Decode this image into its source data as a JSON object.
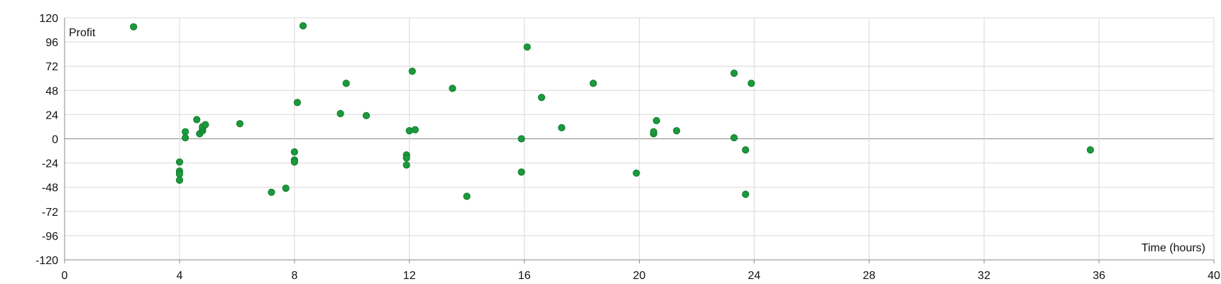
{
  "chart_data": {
    "type": "scatter",
    "xlabel": "Time (hours)",
    "ylabel": "Profit",
    "xlim": [
      0,
      40
    ],
    "ylim": [
      -120,
      120
    ],
    "x_ticks": [
      0,
      4,
      8,
      12,
      16,
      20,
      24,
      28,
      32,
      36,
      40
    ],
    "y_ticks": [
      120,
      96,
      72,
      48,
      24,
      0,
      -24,
      -48,
      -72,
      -96,
      -120
    ],
    "grid": true,
    "zero_line": true,
    "marker_color": "#1a9a3c",
    "points": [
      {
        "x": 2.4,
        "y": 111
      },
      {
        "x": 4.0,
        "y": -23
      },
      {
        "x": 4.0,
        "y": -32
      },
      {
        "x": 4.0,
        "y": -35
      },
      {
        "x": 4.0,
        "y": -41
      },
      {
        "x": 4.2,
        "y": 7
      },
      {
        "x": 4.2,
        "y": 1
      },
      {
        "x": 4.6,
        "y": 19
      },
      {
        "x": 4.7,
        "y": 5
      },
      {
        "x": 4.8,
        "y": 8
      },
      {
        "x": 4.8,
        "y": 10
      },
      {
        "x": 4.8,
        "y": 12
      },
      {
        "x": 4.9,
        "y": 14
      },
      {
        "x": 6.1,
        "y": 15
      },
      {
        "x": 7.2,
        "y": -53
      },
      {
        "x": 7.7,
        "y": -49
      },
      {
        "x": 8.0,
        "y": -13
      },
      {
        "x": 8.0,
        "y": -21
      },
      {
        "x": 8.0,
        "y": -23
      },
      {
        "x": 8.1,
        "y": 36
      },
      {
        "x": 8.3,
        "y": 112
      },
      {
        "x": 9.6,
        "y": 25
      },
      {
        "x": 9.8,
        "y": 55
      },
      {
        "x": 10.5,
        "y": 23
      },
      {
        "x": 11.9,
        "y": -16
      },
      {
        "x": 11.9,
        "y": -19
      },
      {
        "x": 11.9,
        "y": -26
      },
      {
        "x": 12.0,
        "y": 8
      },
      {
        "x": 12.1,
        "y": 67
      },
      {
        "x": 12.2,
        "y": 9
      },
      {
        "x": 13.5,
        "y": 50
      },
      {
        "x": 14.0,
        "y": -57
      },
      {
        "x": 15.9,
        "y": 0
      },
      {
        "x": 15.9,
        "y": -33
      },
      {
        "x": 16.1,
        "y": 91
      },
      {
        "x": 16.6,
        "y": 41
      },
      {
        "x": 17.3,
        "y": 11
      },
      {
        "x": 18.4,
        "y": 55
      },
      {
        "x": 19.9,
        "y": -34
      },
      {
        "x": 20.5,
        "y": 5
      },
      {
        "x": 20.5,
        "y": 7
      },
      {
        "x": 20.6,
        "y": 18
      },
      {
        "x": 21.3,
        "y": 8
      },
      {
        "x": 23.3,
        "y": 65
      },
      {
        "x": 23.3,
        "y": 1
      },
      {
        "x": 23.7,
        "y": -11
      },
      {
        "x": 23.7,
        "y": -55
      },
      {
        "x": 23.9,
        "y": 55
      },
      {
        "x": 35.7,
        "y": -11
      }
    ]
  }
}
